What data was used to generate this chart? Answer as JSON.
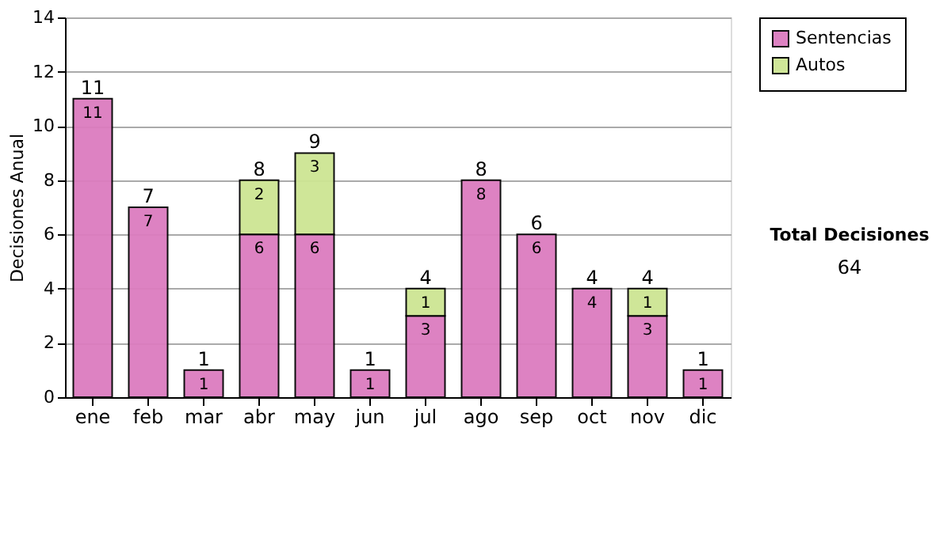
{
  "chart_data": {
    "type": "bar",
    "stacked": true,
    "ylabel": "Decisiones Anual",
    "categories": [
      "ene",
      "feb",
      "mar",
      "abr",
      "may",
      "jun",
      "jul",
      "ago",
      "sep",
      "oct",
      "nov",
      "dic"
    ],
    "series": [
      {
        "name": "Sentencias",
        "color": "#dc7cbf",
        "values": [
          11,
          7,
          1,
          6,
          6,
          1,
          3,
          8,
          6,
          4,
          3,
          1
        ]
      },
      {
        "name": "Autos",
        "color": "#cde593",
        "values": [
          null,
          null,
          null,
          2,
          3,
          null,
          1,
          null,
          null,
          null,
          1,
          null
        ]
      }
    ],
    "totals": [
      "11",
      "7",
      "1",
      "8",
      "9",
      "1",
      "4",
      "8",
      "6",
      "4",
      "4",
      "1"
    ],
    "data_labels": true,
    "ylim": [
      0,
      14
    ],
    "yticks": [
      0,
      2,
      4,
      6,
      8,
      10,
      12,
      14
    ],
    "grid": "y",
    "legend": "right",
    "annotations": [
      "Total Decisiones",
      "64"
    ]
  }
}
